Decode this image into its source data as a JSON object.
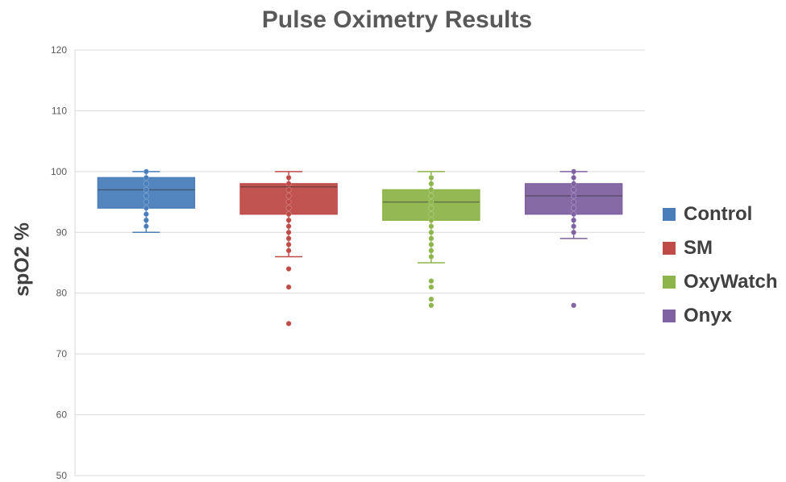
{
  "chart_data": {
    "type": "box",
    "title": "Pulse Oximetry Results",
    "xlabel": "",
    "ylabel": "spO2 %",
    "ylim": [
      50,
      120
    ],
    "yticks": [
      50,
      60,
      70,
      80,
      90,
      100,
      110,
      120
    ],
    "grid": true,
    "legend_position": "right",
    "series": [
      {
        "name": "Control",
        "color": "#4A7EBB",
        "min": 90,
        "q1": 94,
        "median": 97,
        "q3": 99,
        "max": 100,
        "points": [
          100,
          99,
          98,
          97,
          96,
          95,
          94,
          93,
          92,
          91
        ]
      },
      {
        "name": "SM",
        "color": "#BE4B48",
        "min": 86,
        "q1": 93,
        "median": 97.5,
        "q3": 98,
        "max": 100,
        "points": [
          99,
          98,
          97,
          96,
          95,
          94,
          93,
          92,
          91,
          90,
          89,
          88,
          87,
          84,
          81,
          75
        ]
      },
      {
        "name": "OxyWatch",
        "color": "#8EB54B",
        "min": 85,
        "q1": 92,
        "median": 95,
        "q3": 97,
        "max": 100,
        "points": [
          99,
          98,
          97,
          96,
          95,
          94,
          93,
          92,
          91,
          90,
          89,
          88,
          87,
          86,
          82,
          81,
          79,
          78
        ]
      },
      {
        "name": "Onyx",
        "color": "#7F62A1",
        "min": 89,
        "q1": 93,
        "median": 96,
        "q3": 98,
        "max": 100,
        "points": [
          100,
          99,
          98,
          97,
          96,
          95,
          94,
          93,
          92,
          91,
          90,
          78
        ]
      }
    ]
  }
}
